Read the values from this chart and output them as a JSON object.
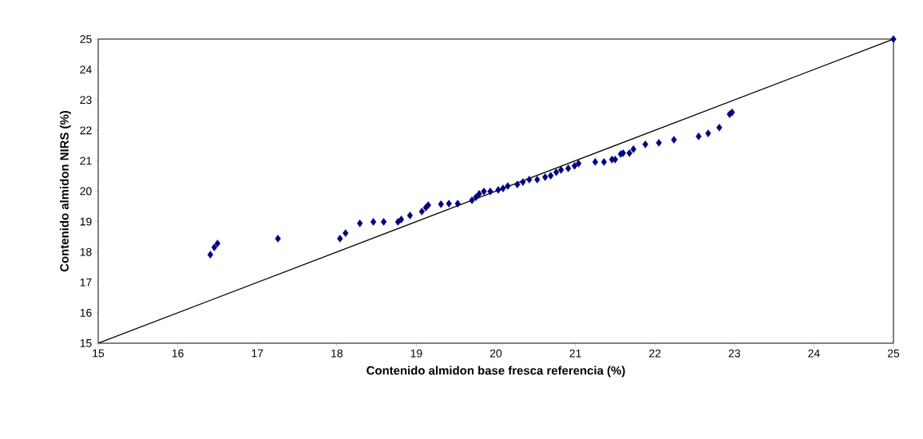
{
  "chart_data": {
    "type": "scatter",
    "xlabel": "Contenido almidon base fresca referencia (%)",
    "ylabel": "Contenido almidon NIRS (%)",
    "xlim": [
      15,
      25
    ],
    "ylim": [
      15,
      25
    ],
    "xticks": [
      15,
      16,
      17,
      18,
      19,
      20,
      21,
      22,
      23,
      24,
      25
    ],
    "yticks": [
      15,
      16,
      17,
      18,
      19,
      20,
      21,
      22,
      23,
      24,
      25
    ],
    "grid": false,
    "series": [
      {
        "color": "#000080",
        "marker": "diamond",
        "x": [
          16.41,
          16.46,
          16.5,
          17.26,
          18.04,
          18.11,
          18.29,
          18.46,
          18.59,
          18.77,
          18.81,
          18.92,
          19.07,
          19.12,
          19.15,
          19.31,
          19.41,
          19.52,
          19.7,
          19.75,
          19.79,
          19.85,
          19.93,
          20.03,
          20.09,
          20.15,
          20.27,
          20.34,
          20.42,
          20.52,
          20.62,
          20.69,
          20.76,
          20.82,
          20.91,
          20.99,
          21.04,
          21.25,
          21.36,
          21.46,
          21.5,
          21.57,
          21.6,
          21.68,
          21.73,
          21.88,
          22.05,
          22.24,
          22.55,
          22.67,
          22.81,
          22.94,
          22.97,
          25
        ],
        "values": [
          17.91,
          18.15,
          18.28,
          18.44,
          18.44,
          18.62,
          18.94,
          18.99,
          18.99,
          18.99,
          19.07,
          19.2,
          19.33,
          19.46,
          19.54,
          19.57,
          19.59,
          19.59,
          19.7,
          19.8,
          19.91,
          19.99,
          19.99,
          20.04,
          20.09,
          20.17,
          20.22,
          20.3,
          20.38,
          20.38,
          20.46,
          20.51,
          20.62,
          20.7,
          20.75,
          20.83,
          20.91,
          20.96,
          20.96,
          21.04,
          21.04,
          21.22,
          21.25,
          21.25,
          21.38,
          21.54,
          21.59,
          21.69,
          21.8,
          21.9,
          22.09,
          22.53,
          22.59,
          25
        ]
      },
      {
        "type": "line",
        "color": "#000000",
        "line_style": "solid",
        "x": [
          15,
          25
        ],
        "values": [
          15,
          25
        ]
      }
    ]
  }
}
